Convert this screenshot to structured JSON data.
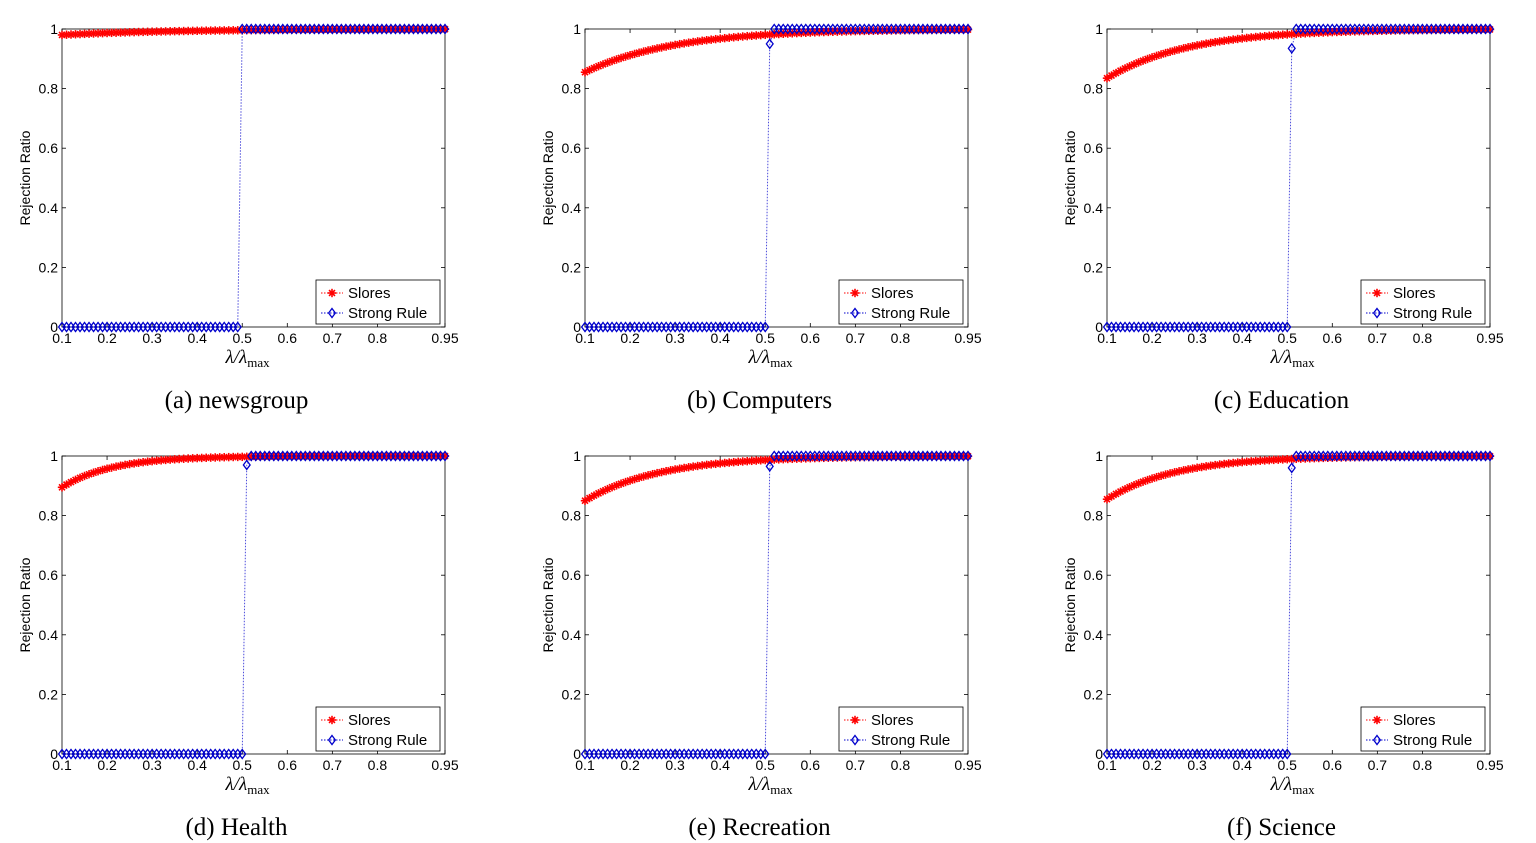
{
  "chart_data": [
    {
      "type": "line",
      "caption": "(a)  newsgroup",
      "ylabel": "Rejection Ratio",
      "xlabel": "λ/λ",
      "xlabel_sub": "max",
      "xticks": [
        "0.1",
        "0.2",
        "0.3",
        "0.4",
        "0.5",
        "0.6",
        "0.7",
        "0.8",
        "0.95"
      ],
      "yticks": [
        "0",
        "0.2",
        "0.4",
        "0.6",
        "0.8",
        "1"
      ],
      "xlim": [
        0.1,
        0.95
      ],
      "ylim": [
        0,
        1
      ],
      "series": [
        {
          "name": "Slores",
          "color": "#ff0000",
          "marker": "star",
          "start": 0.98,
          "curve": 4.0
        },
        {
          "name": "Strong Rule",
          "color": "#0000cc",
          "marker": "diamond",
          "jump_x": 0.505,
          "jump_y": 1.0
        }
      ]
    },
    {
      "type": "line",
      "caption": "(b)  Computers",
      "ylabel": "Rejection Ratio",
      "xlabel": "λ/λ",
      "xlabel_sub": "max",
      "xticks": [
        "0.1",
        "0.2",
        "0.3",
        "0.4",
        "0.5",
        "0.6",
        "0.7",
        "0.8",
        "0.95"
      ],
      "yticks": [
        "0",
        "0.2",
        "0.4",
        "0.6",
        "0.8",
        "1"
      ],
      "xlim": [
        0.1,
        0.95
      ],
      "ylim": [
        0,
        1
      ],
      "series": [
        {
          "name": "Slores",
          "color": "#ff0000",
          "marker": "star",
          "start": 0.855,
          "curve": 5.0
        },
        {
          "name": "Strong Rule",
          "color": "#0000cc",
          "marker": "diamond",
          "jump_x": 0.51,
          "jump_y": 0.95
        }
      ]
    },
    {
      "type": "line",
      "caption": "(c)  Education",
      "ylabel": "Rejection Ratio",
      "xlabel": "λ/λ",
      "xlabel_sub": "max",
      "xticks": [
        "0.1",
        "0.2",
        "0.3",
        "0.4",
        "0.5",
        "0.6",
        "0.7",
        "0.8",
        "0.95"
      ],
      "yticks": [
        "0",
        "0.2",
        "0.4",
        "0.6",
        "0.8",
        "1"
      ],
      "xlim": [
        0.1,
        0.95
      ],
      "ylim": [
        0,
        1
      ],
      "series": [
        {
          "name": "Slores",
          "color": "#ff0000",
          "marker": "star",
          "start": 0.835,
          "curve": 5.5
        },
        {
          "name": "Strong Rule",
          "color": "#0000cc",
          "marker": "diamond",
          "jump_x": 0.51,
          "jump_y": 0.935
        }
      ]
    },
    {
      "type": "line",
      "caption": "(d)  Health",
      "ylabel": "Rejection Ratio",
      "xlabel": "λ/λ",
      "xlabel_sub": "max",
      "xticks": [
        "0.1",
        "0.2",
        "0.3",
        "0.4",
        "0.5",
        "0.6",
        "0.7",
        "0.8",
        "0.95"
      ],
      "yticks": [
        "0",
        "0.2",
        "0.4",
        "0.6",
        "0.8",
        "1"
      ],
      "xlim": [
        0.1,
        0.95
      ],
      "ylim": [
        0,
        1
      ],
      "series": [
        {
          "name": "Slores",
          "color": "#ff0000",
          "marker": "star",
          "start": 0.895,
          "curve": 9.0
        },
        {
          "name": "Strong Rule",
          "color": "#0000cc",
          "marker": "diamond",
          "jump_x": 0.51,
          "jump_y": 0.97
        }
      ]
    },
    {
      "type": "line",
      "caption": "(e)  Recreation",
      "ylabel": "Rejection Ratio",
      "xlabel": "λ/λ",
      "xlabel_sub": "max",
      "xticks": [
        "0.1",
        "0.2",
        "0.3",
        "0.4",
        "0.5",
        "0.6",
        "0.7",
        "0.8",
        "0.95"
      ],
      "yticks": [
        "0",
        "0.2",
        "0.4",
        "0.6",
        "0.8",
        "1"
      ],
      "xlim": [
        0.1,
        0.95
      ],
      "ylim": [
        0,
        1
      ],
      "series": [
        {
          "name": "Slores",
          "color": "#ff0000",
          "marker": "star",
          "start": 0.85,
          "curve": 6.0
        },
        {
          "name": "Strong Rule",
          "color": "#0000cc",
          "marker": "diamond",
          "jump_x": 0.51,
          "jump_y": 0.965
        }
      ]
    },
    {
      "type": "line",
      "caption": "(f)  Science",
      "ylabel": "Rejection Ratio",
      "xlabel": "λ/λ",
      "xlabel_sub": "max",
      "xticks": [
        "0.1",
        "0.2",
        "0.3",
        "0.4",
        "0.5",
        "0.6",
        "0.7",
        "0.8",
        "0.95"
      ],
      "yticks": [
        "0",
        "0.2",
        "0.4",
        "0.6",
        "0.8",
        "1"
      ],
      "xlim": [
        0.1,
        0.95
      ],
      "ylim": [
        0,
        1
      ],
      "series": [
        {
          "name": "Slores",
          "color": "#ff0000",
          "marker": "star",
          "start": 0.855,
          "curve": 6.5
        },
        {
          "name": "Strong Rule",
          "color": "#0000cc",
          "marker": "diamond",
          "jump_x": 0.51,
          "jump_y": 0.96
        }
      ]
    }
  ]
}
